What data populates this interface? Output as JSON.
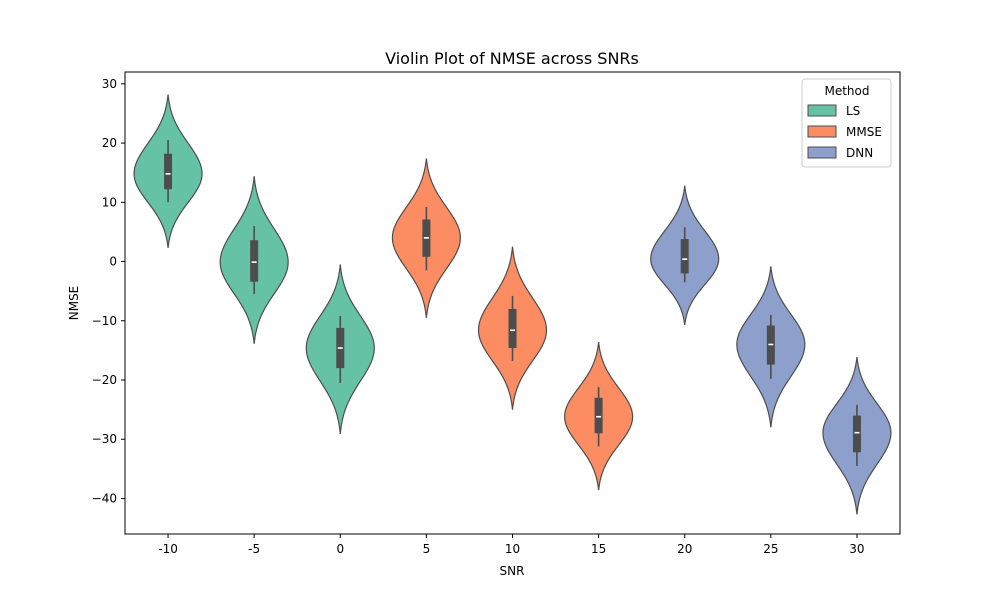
{
  "chart_data": {
    "type": "violin",
    "title": "Violin Plot of NMSE across SNRs",
    "xlabel": "SNR",
    "ylabel": "NMSE",
    "categories": [
      "-10",
      "-5",
      "0",
      "5",
      "10",
      "15",
      "20",
      "25",
      "30"
    ],
    "yticks": [
      30,
      20,
      10,
      0,
      -10,
      -20,
      -30,
      -40
    ],
    "ylim": [
      -46,
      32
    ],
    "grid": false,
    "legend": {
      "title": "Method",
      "placement": "top-right",
      "entries": [
        {
          "name": "LS",
          "color": "#66c2a5"
        },
        {
          "name": "MMSE",
          "color": "#fc8d62"
        },
        {
          "name": "DNN",
          "color": "#8da0cb"
        }
      ]
    },
    "series": [
      {
        "name": "LS",
        "color": "#66c2a5",
        "violins": [
          {
            "snr": "-10",
            "min": 2.3,
            "max": 28.2,
            "q1": 12.2,
            "median": 14.8,
            "q3": 18.2,
            "whisker_low": 10.0,
            "whisker_high": 20.5
          },
          {
            "snr": "-5",
            "min": -13.9,
            "max": 14.4,
            "q1": -3.4,
            "median": -0.1,
            "q3": 3.6,
            "whisker_low": -5.5,
            "whisker_high": 6.0
          },
          {
            "snr": "0",
            "min": -29.1,
            "max": -0.5,
            "q1": -18.0,
            "median": -14.6,
            "q3": -11.2,
            "whisker_low": -20.5,
            "whisker_high": -9.2
          }
        ]
      },
      {
        "name": "MMSE",
        "color": "#fc8d62",
        "violins": [
          {
            "snr": "5",
            "min": -9.5,
            "max": 17.4,
            "q1": 0.8,
            "median": 4.0,
            "q3": 7.1,
            "whisker_low": -1.5,
            "whisker_high": 9.2
          },
          {
            "snr": "10",
            "min": -25.0,
            "max": 2.5,
            "q1": -14.6,
            "median": -11.6,
            "q3": -8.0,
            "whisker_low": -16.8,
            "whisker_high": -5.8
          },
          {
            "snr": "15",
            "min": -38.6,
            "max": -13.6,
            "q1": -29.0,
            "median": -26.2,
            "q3": -23.0,
            "whisker_low": -31.2,
            "whisker_high": -21.2
          }
        ]
      },
      {
        "name": "DNN",
        "color": "#8da0cb",
        "violins": [
          {
            "snr": "20",
            "min": -10.7,
            "max": 12.8,
            "q1": -2.0,
            "median": 0.4,
            "q3": 3.8,
            "whisker_low": -3.5,
            "whisker_high": 5.8
          },
          {
            "snr": "25",
            "min": -28.0,
            "max": -0.8,
            "q1": -17.4,
            "median": -14.0,
            "q3": -10.8,
            "whisker_low": -19.8,
            "whisker_high": -9.0
          },
          {
            "snr": "30",
            "min": -42.7,
            "max": -16.1,
            "q1": -32.2,
            "median": -28.9,
            "q3": -26.0,
            "whisker_low": -34.5,
            "whisker_high": -24.2
          }
        ]
      }
    ]
  }
}
